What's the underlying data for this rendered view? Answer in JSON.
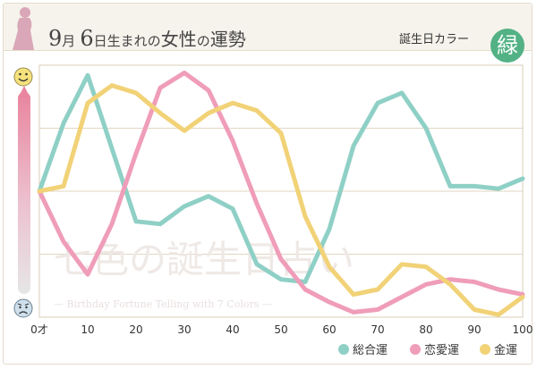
{
  "header": {
    "day_month_1": "9",
    "month_char": "月",
    "day": "6",
    "title_part1": "日生まれの",
    "title_part2": "女性",
    "title_part3": "の",
    "title_part4": "運勢",
    "birth_color_label": "誕生日カラー",
    "birth_color": "緑",
    "birth_color_hex": "#53b285"
  },
  "watermark": {
    "main": "七色の誕生日占い",
    "sub": "— Birthday Fortune Telling with 7 Colors —"
  },
  "icons": {
    "top": "happy-face-icon",
    "bottom": "sad-face-icon"
  },
  "chart_data": {
    "type": "line",
    "x_unit": "才",
    "x_ticks": [
      "0才",
      "10",
      "20",
      "30",
      "40",
      "50",
      "60",
      "70",
      "80",
      "90",
      "100"
    ],
    "xlim": [
      0,
      100
    ],
    "ylim": [
      0,
      100
    ],
    "grid": "horizontal",
    "legend_position": "bottom-right",
    "series": [
      {
        "name": "総合運",
        "color": "#8fd0c6",
        "x": [
          0,
          5,
          10,
          15,
          20,
          25,
          30,
          35,
          40,
          45,
          50,
          55,
          60,
          65,
          70,
          75,
          80,
          85,
          90,
          95,
          100
        ],
        "y": [
          50,
          77,
          96,
          67,
          38,
          37,
          44,
          48,
          43,
          21,
          15,
          14,
          35,
          68,
          85,
          89,
          75,
          52,
          52,
          51,
          55
        ]
      },
      {
        "name": "恋愛運",
        "color": "#ef9db9",
        "x": [
          0,
          5,
          10,
          15,
          20,
          25,
          30,
          35,
          40,
          45,
          50,
          55,
          60,
          65,
          70,
          75,
          80,
          85,
          90,
          95,
          100
        ],
        "y": [
          50,
          30,
          17,
          37,
          65,
          91,
          97,
          90,
          70,
          45,
          23,
          11,
          6,
          2,
          3,
          8,
          13,
          15,
          14,
          11,
          9
        ]
      },
      {
        "name": "金運",
        "color": "#f1d277",
        "x": [
          0,
          5,
          10,
          15,
          20,
          25,
          30,
          35,
          40,
          45,
          50,
          55,
          60,
          65,
          70,
          75,
          80,
          85,
          90,
          95,
          100
        ],
        "y": [
          50,
          52,
          85,
          92,
          89,
          81,
          74,
          81,
          85,
          82,
          73,
          40,
          20,
          9,
          11,
          21,
          20,
          13,
          3,
          1,
          8
        ]
      }
    ]
  }
}
